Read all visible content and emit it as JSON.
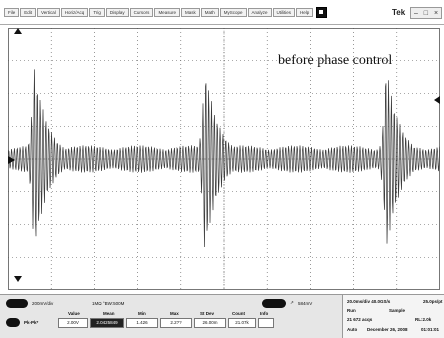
{
  "menu": {
    "items": [
      "File",
      "Edit",
      "Vertical",
      "Horiz/Acq",
      "Trig",
      "Display",
      "Cursors",
      "Measure",
      "Mask",
      "Math",
      "MyScope",
      "Analyze",
      "Utilities",
      "Help"
    ],
    "brand": "Tek"
  },
  "annotation": "before phase control",
  "channel": {
    "scale": "200mV/div",
    "coupling": "1MΩ °BW:500M",
    "trigger_level": "584mV"
  },
  "measurements": {
    "name": "Pk-Pk*",
    "headers": [
      "Value",
      "Mean",
      "Min",
      "Max",
      "St Dev",
      "Count",
      "Info"
    ],
    "values": [
      "2.00V",
      "2.0425849",
      "1.426",
      "2.2??",
      "26.00m",
      "21.07k",
      ""
    ]
  },
  "acquisition": {
    "timebase": "20.0ms/div  40.0GS/s",
    "record": "25.0ps/pt",
    "mode_label": "Run",
    "mode_value": "Sample",
    "acqs": "21 672 acqs",
    "rl": "RL:2.0k",
    "status": "Auto",
    "date": "December 26, 2008",
    "time": "01:01:01"
  },
  "colors": {
    "trace": "#3a3a3a",
    "grid": "#555555",
    "panel_bg": "#e6e6e6"
  },
  "waveform": {
    "bursts_at_div": [
      0.6,
      4.55,
      8.75
    ],
    "burst_amplitude_div": 2.9,
    "background_amplitude_div": 0.35
  }
}
